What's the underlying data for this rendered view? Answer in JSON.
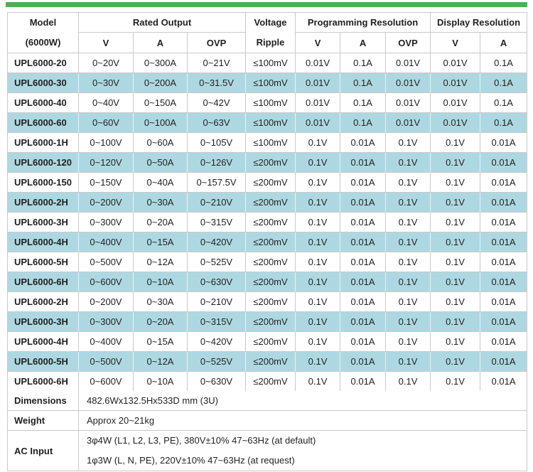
{
  "colors": {
    "accent_green": "#4caf50",
    "row_alt_blue": "#aed8e1",
    "border_gray": "#c9c9c9",
    "text": "#1f1f1f"
  },
  "table": {
    "header": {
      "model_top": "Model",
      "model_bottom": "(6000W)",
      "rated_output": "Rated Output",
      "voltage_top": "Voltage",
      "voltage_bottom": "Ripple",
      "programming_resolution": "Programming Resolution",
      "display_resolution": "Display Resolution",
      "rated_sub": [
        "V",
        "A",
        "OVP"
      ],
      "prog_sub": [
        "V",
        "A",
        "OVP"
      ],
      "disp_sub": [
        "V",
        "A"
      ]
    },
    "rows": [
      {
        "model": "UPL6000-20",
        "cells": [
          "0~20V",
          "0~300A",
          "0~21V",
          "≤100mV",
          "0.01V",
          "0.1A",
          "0.01V",
          "0.01V",
          "0.1A"
        ]
      },
      {
        "model": "UPL6000-30",
        "cells": [
          "0~30V",
          "0~200A",
          "0~31.5V",
          "≤100mV",
          "0.01V",
          "0.1A",
          "0.01V",
          "0.01V",
          "0.1A"
        ]
      },
      {
        "model": "UPL6000-40",
        "cells": [
          "0~40V",
          "0~150A",
          "0~42V",
          "≤100mV",
          "0.01V",
          "0.1A",
          "0.01V",
          "0.01V",
          "0.1A"
        ]
      },
      {
        "model": "UPL6000-60",
        "cells": [
          "0~60V",
          "0~100A",
          "0~63V",
          "≤100mV",
          "0.01V",
          "0.1A",
          "0.01V",
          "0.01V",
          "0.1A"
        ]
      },
      {
        "model": "UPL6000-1H",
        "cells": [
          "0~100V",
          "0~60A",
          "0~105V",
          "≤100mV",
          "0.1V",
          "0.01A",
          "0.1V",
          "0.1V",
          "0.01A"
        ]
      },
      {
        "model": "UPL6000-120",
        "cells": [
          "0~120V",
          "0~50A",
          "0~126V",
          "≤200mV",
          "0.1V",
          "0.01A",
          "0.1V",
          "0.1V",
          "0.01A"
        ]
      },
      {
        "model": "UPL6000-150",
        "cells": [
          "0~150V",
          "0~40A",
          "0~157.5V",
          "≤200mV",
          "0.1V",
          "0.01A",
          "0.1V",
          "0.1V",
          "0.01A"
        ]
      },
      {
        "model": "UPL6000-2H",
        "cells": [
          "0~200V",
          "0~30A",
          "0~210V",
          "≤200mV",
          "0.1V",
          "0.01A",
          "0.1V",
          "0.1V",
          "0.01A"
        ]
      },
      {
        "model": "UPL6000-3H",
        "cells": [
          "0~300V",
          "0~20A",
          "0~315V",
          "≤200mV",
          "0.1V",
          "0.01A",
          "0.1V",
          "0.1V",
          "0.01A"
        ]
      },
      {
        "model": "UPL6000-4H",
        "cells": [
          "0~400V",
          "0~15A",
          "0~420V",
          "≤200mV",
          "0.1V",
          "0.01A",
          "0.1V",
          "0.1V",
          "0.01A"
        ]
      },
      {
        "model": "UPL6000-5H",
        "cells": [
          "0~500V",
          "0~12A",
          "0~525V",
          "≤200mV",
          "0.1V",
          "0.01A",
          "0.1V",
          "0.1V",
          "0.01A"
        ]
      },
      {
        "model": "UPL6000-6H",
        "cells": [
          "0~600V",
          "0~10A",
          "0~630V",
          "≤200mV",
          "0.1V",
          "0.01A",
          "0.1V",
          "0.1V",
          "0.01A"
        ]
      },
      {
        "model": "UPL6000-2H",
        "cells": [
          "0~200V",
          "0~30A",
          "0~210V",
          "≤200mV",
          "0.1V",
          "0.01A",
          "0.1V",
          "0.1V",
          "0.01A"
        ]
      },
      {
        "model": "UPL6000-3H",
        "cells": [
          "0~300V",
          "0~20A",
          "0~315V",
          "≤200mV",
          "0.1V",
          "0.01A",
          "0.1V",
          "0.1V",
          "0.01A"
        ]
      },
      {
        "model": "UPL6000-4H",
        "cells": [
          "0~400V",
          "0~15A",
          "0~420V",
          "≤200mV",
          "0.1V",
          "0.01A",
          "0.1V",
          "0.1V",
          "0.01A"
        ]
      },
      {
        "model": "UPL6000-5H",
        "cells": [
          "0~500V",
          "0~12A",
          "0~525V",
          "≤200mV",
          "0.1V",
          "0.01A",
          "0.1V",
          "0.1V",
          "0.01A"
        ]
      },
      {
        "model": "UPL6000-6H",
        "cells": [
          "0~600V",
          "0~10A",
          "0~630V",
          "≤200mV",
          "0.1V",
          "0.01A",
          "0.1V",
          "0.1V",
          "0.01A"
        ]
      }
    ],
    "footer": [
      {
        "label": "Dimensions",
        "lines": [
          "482.6Wx132.5Hx533D mm (3U)"
        ]
      },
      {
        "label": "Weight",
        "lines": [
          "Approx 20~21kg"
        ]
      },
      {
        "label": "AC Input",
        "lines": [
          "3φ4W (L1, L2, L3, PE), 380V±10% 47~63Hz (at default)",
          "1φ3W (L, N, PE), 220V±10% 47~63Hz (at request)"
        ]
      }
    ]
  }
}
